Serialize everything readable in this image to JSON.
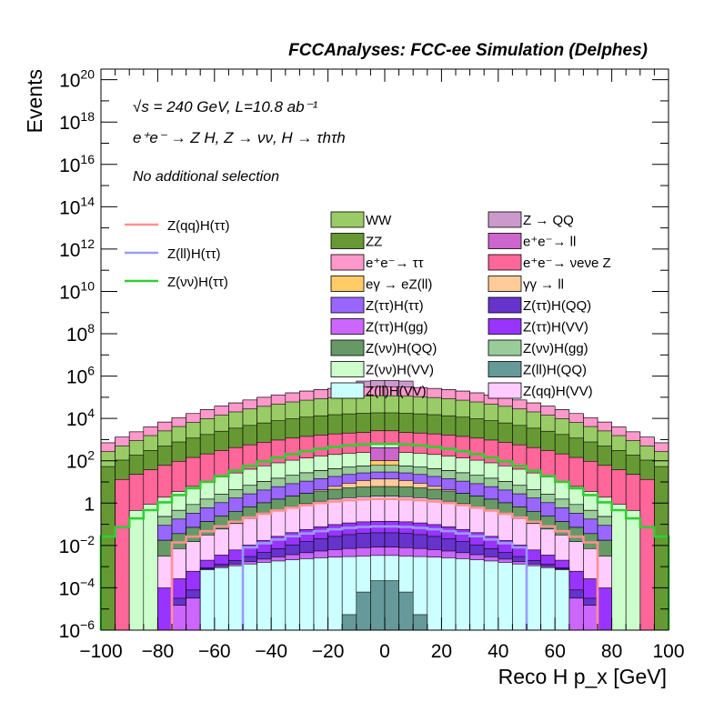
{
  "chart_data": {
    "type": "bar",
    "stacked": true,
    "title": "FCCAnalyses: FCC-ee Simulation (Delphes)",
    "xlabel": "Reco H p_x [GeV]",
    "ylabel": "Events",
    "xlim": [
      -100,
      100
    ],
    "ylim_log10": [
      -6,
      20.5
    ],
    "yscale": "log",
    "bins": 40,
    "x_ticks": [
      "−100",
      "−80",
      "−60",
      "−40",
      "−20",
      "0",
      "20",
      "40",
      "60",
      "80",
      "100"
    ],
    "y_ticks": [
      {
        "base": "10",
        "exp": "20"
      },
      {
        "base": "10",
        "exp": "18"
      },
      {
        "base": "10",
        "exp": "16"
      },
      {
        "base": "10",
        "exp": "14"
      },
      {
        "base": "10",
        "exp": "12"
      },
      {
        "base": "10",
        "exp": "10"
      },
      {
        "base": "10",
        "exp": "8"
      },
      {
        "base": "10",
        "exp": "6"
      },
      {
        "base": "10",
        "exp": "4"
      },
      {
        "base": "10",
        "exp": "2"
      },
      {
        "base": "1",
        "exp": ""
      },
      {
        "base": "10",
        "exp": "−2"
      },
      {
        "base": "10",
        "exp": "−4"
      },
      {
        "base": "10",
        "exp": "−6"
      }
    ],
    "annotations": [
      "√s = 240 GeV, L=10.8 ab⁻¹",
      "e⁺e⁻ → Z H, Z → νν, H → τhτh",
      "No additional selection"
    ],
    "legend_lines": [
      {
        "label": "Z(qq)H(ττ)",
        "color": "#ff9090"
      },
      {
        "label": "Z(ll)H(ττ)",
        "color": "#9a9aff"
      },
      {
        "label": "Z(νν)H(ττ)",
        "color": "#33cc33"
      }
    ],
    "legend_fills_left": [
      {
        "label": "WW",
        "color": "#99cc66"
      },
      {
        "label": "ZZ",
        "color": "#669933"
      },
      {
        "label": "e⁺e⁻→ ττ",
        "color": "#ff99cc"
      },
      {
        "label": "eγ → eZ(ll)",
        "color": "#ffcc66"
      },
      {
        "label": "Z(ττ)H(ττ)",
        "color": "#9966ff"
      },
      {
        "label": "Z(ττ)H(gg)",
        "color": "#cc66ff"
      },
      {
        "label": "Z(νν)H(QQ)",
        "color": "#669966"
      },
      {
        "label": "Z(νν)H(VV)",
        "color": "#ccffcc"
      },
      {
        "label": "Z(ll)H(VV)",
        "color": "#ccffff"
      }
    ],
    "legend_fills_right": [
      {
        "label": "Z → QQ",
        "color": "#cc99cc"
      },
      {
        "label": "e⁺e⁻→ ll",
        "color": "#cc66cc"
      },
      {
        "label": "e⁺e⁻→ νeνe Z",
        "color": "#ff6699"
      },
      {
        "label": "γγ → ll",
        "color": "#ffcc99"
      },
      {
        "label": "Z(ττ)H(QQ)",
        "color": "#6633cc"
      },
      {
        "label": "Z(ττ)H(VV)",
        "color": "#9933ff"
      },
      {
        "label": "Z(νν)H(gg)",
        "color": "#99cc99"
      },
      {
        "label": "Z(ll)H(QQ)",
        "color": "#669999"
      },
      {
        "label": "Z(qq)H(VV)",
        "color": "#ffccff"
      }
    ],
    "stack_bands": [
      {
        "name": "Z(ll)H(QQ)",
        "color": "#669999",
        "half_width_bins": 3,
        "log_peak": -3.6,
        "log_edge": -6.0
      },
      {
        "name": "Z(ll)H(VV)",
        "color": "#ccffff",
        "half_width_bins": 13,
        "log_peak": -2.5,
        "log_edge": -3.2
      },
      {
        "name": "Z(ττ)H(gg)",
        "color": "#cc66ff",
        "half_width_bins": 15,
        "log_peak": -2.3,
        "log_edge": -5.0
      },
      {
        "name": "Z(ττ)H(QQ)",
        "color": "#6633cc",
        "half_width_bins": 15,
        "log_peak": -1.5,
        "log_edge": -5.0
      },
      {
        "name": "Z(ττ)H(VV)",
        "color": "#9933ff",
        "half_width_bins": 16,
        "log_peak": -1.0,
        "log_edge": -4.2
      },
      {
        "name": "Z(qq)H(VV)",
        "color": "#ffccff",
        "half_width_bins": 16,
        "log_peak": 0.3,
        "log_edge": -2.7
      },
      {
        "name": "Z(νν)H(QQ)",
        "color": "#669966",
        "half_width_bins": 16,
        "log_peak": 0.6,
        "log_edge": -2.0
      },
      {
        "name": "γγ → ll",
        "color": "#ffcc99",
        "half_width_bins": 5,
        "log_peak": 0.9,
        "log_edge": -0.5
      },
      {
        "name": "Z(ττ)H(ττ)",
        "color": "#9966ff",
        "half_width_bins": 16,
        "log_peak": 1.2,
        "log_edge": -1.3
      },
      {
        "name": "Z(νν)H(gg)",
        "color": "#99cc99",
        "half_width_bins": 16,
        "log_peak": 1.5,
        "log_edge": -1.0
      },
      {
        "name": "eγ → eZ(ll)",
        "color": "#ffcc66",
        "half_width_bins": 1,
        "log_peak": 1.6,
        "log_edge": 1.6
      },
      {
        "name": "e⁺e⁻→ ll",
        "color": "#cc66cc",
        "half_width_bins": 1,
        "log_peak": 2.5,
        "log_edge": 2.5
      },
      {
        "name": "Z(νν)H(VV)",
        "color": "#ccffcc",
        "half_width_bins": 18,
        "log_peak": 2.3,
        "log_edge": -0.5
      },
      {
        "name": "e⁺e⁻→ νeνe Z",
        "color": "#ff6699",
        "half_width_bins": 19,
        "log_peak": 3.3,
        "log_edge": 1.0
      },
      {
        "name": "ZZ",
        "color": "#669933",
        "half_width_bins": 20,
        "log_peak": 4.2,
        "log_edge": 1.6
      },
      {
        "name": "WW",
        "color": "#99cc66",
        "half_width_bins": 20,
        "log_peak": 5.0,
        "log_edge": 2.2
      },
      {
        "name": "e⁺e⁻→ ττ",
        "color": "#ff99cc",
        "half_width_bins": 20,
        "log_peak": 5.3,
        "log_edge": 2.5
      },
      {
        "name": "Z → QQ",
        "color": "#cc99cc",
        "half_width_bins": 2,
        "log_peak": 5.5,
        "log_edge": 5.4
      }
    ],
    "signal_lines": [
      {
        "name": "Z(νν)H(ττ)",
        "color": "#33cc33",
        "half_width_bins": 20,
        "log_peak": 2.8,
        "log_edge": -1.8
      },
      {
        "name": "Z(qq)H(ττ)",
        "color": "#ff9090",
        "half_width_bins": 15,
        "log_peak": 0.2,
        "log_edge": -2.0
      },
      {
        "name": "Z(ll)H(ττ)",
        "color": "#9a9aff",
        "half_width_bins": 10,
        "log_peak": -1.1,
        "log_edge": -2.2
      }
    ]
  }
}
